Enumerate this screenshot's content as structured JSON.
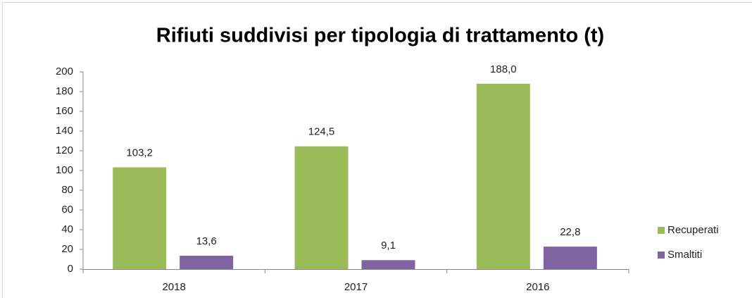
{
  "chart_data": {
    "type": "bar",
    "title": "Rifiuti suddivisi per tipologia di trattamento (t)",
    "categories": [
      "2018",
      "2017",
      "2016"
    ],
    "series": [
      {
        "name": "Recuperati",
        "color": "#9bbb59",
        "values": [
          103.2,
          124.5,
          188.0
        ],
        "value_labels": [
          "103,2",
          "124,5",
          "188,0"
        ]
      },
      {
        "name": "Smaltiti",
        "color": "#8064a2",
        "values": [
          13.6,
          9.1,
          22.8
        ],
        "value_labels": [
          "13,6",
          "9,1",
          "22,8"
        ]
      }
    ],
    "ylim": [
      0,
      200
    ],
    "yticks": [
      0,
      20,
      40,
      60,
      80,
      100,
      120,
      140,
      160,
      180,
      200
    ],
    "grid": false,
    "legend": "right"
  }
}
